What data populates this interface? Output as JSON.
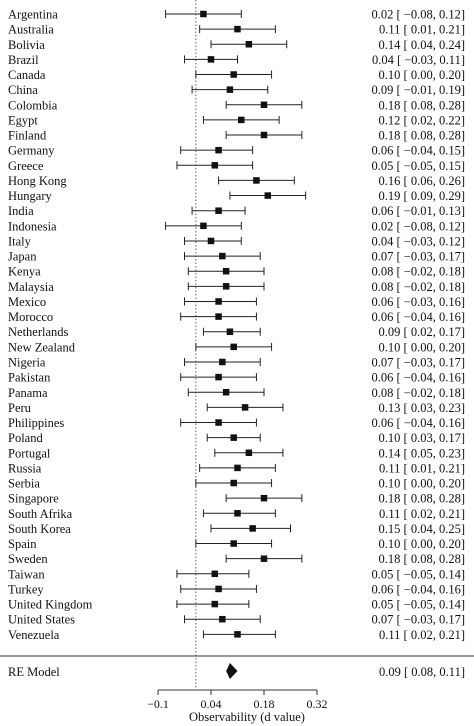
{
  "chart_data": {
    "type": "forest",
    "xlabel": "Observability (d value)",
    "xticks": [
      -0.1,
      0.04,
      0.18,
      0.32
    ],
    "xtick_labels": [
      "−0.1",
      "0.04",
      "0.18",
      "0.32"
    ],
    "xlim": [
      -0.1,
      0.32
    ],
    "reference_line": 0.0,
    "rows": [
      {
        "label": "Argentina",
        "est": 0.02,
        "lo": -0.08,
        "hi": 0.12,
        "text": "0.02 [ −0.08, 0.12]"
      },
      {
        "label": "Australia",
        "est": 0.11,
        "lo": 0.01,
        "hi": 0.21,
        "text": "0.11 [ 0.01, 0.21]"
      },
      {
        "label": "Bolivia",
        "est": 0.14,
        "lo": 0.04,
        "hi": 0.24,
        "text": "0.14 [ 0.04, 0.24]"
      },
      {
        "label": "Brazil",
        "est": 0.04,
        "lo": -0.03,
        "hi": 0.11,
        "text": "0.04 [ −0.03, 0.11]"
      },
      {
        "label": "Canada",
        "est": 0.1,
        "lo": 0.0,
        "hi": 0.2,
        "text": "0.10 [ 0.00, 0.20]"
      },
      {
        "label": "China",
        "est": 0.09,
        "lo": -0.01,
        "hi": 0.19,
        "text": "0.09 [ −0.01, 0.19]"
      },
      {
        "label": "Colombia",
        "est": 0.18,
        "lo": 0.08,
        "hi": 0.28,
        "text": "0.18 [ 0.08, 0.28]"
      },
      {
        "label": "Egypt",
        "est": 0.12,
        "lo": 0.02,
        "hi": 0.22,
        "text": "0.12 [ 0.02, 0.22]"
      },
      {
        "label": "Finland",
        "est": 0.18,
        "lo": 0.08,
        "hi": 0.28,
        "text": "0.18 [ 0.08, 0.28]"
      },
      {
        "label": "Germany",
        "est": 0.06,
        "lo": -0.04,
        "hi": 0.15,
        "text": "0.06 [ −0.04, 0.15]"
      },
      {
        "label": "Greece",
        "est": 0.05,
        "lo": -0.05,
        "hi": 0.15,
        "text": "0.05 [ −0.05, 0.15]"
      },
      {
        "label": "Hong Kong",
        "est": 0.16,
        "lo": 0.06,
        "hi": 0.26,
        "text": "0.16 [ 0.06, 0.26]"
      },
      {
        "label": "Hungary",
        "est": 0.19,
        "lo": 0.09,
        "hi": 0.29,
        "text": "0.19 [ 0.09, 0.29]"
      },
      {
        "label": "India",
        "est": 0.06,
        "lo": -0.01,
        "hi": 0.13,
        "text": "0.06 [ −0.01, 0.13]"
      },
      {
        "label": "Indonesia",
        "est": 0.02,
        "lo": -0.08,
        "hi": 0.12,
        "text": "0.02 [ −0.08, 0.12]"
      },
      {
        "label": "Italy",
        "est": 0.04,
        "lo": -0.03,
        "hi": 0.12,
        "text": "0.04 [ −0.03, 0.12]"
      },
      {
        "label": "Japan",
        "est": 0.07,
        "lo": -0.03,
        "hi": 0.17,
        "text": "0.07 [ −0.03, 0.17]"
      },
      {
        "label": "Kenya",
        "est": 0.08,
        "lo": -0.02,
        "hi": 0.18,
        "text": "0.08 [ −0.02, 0.18]"
      },
      {
        "label": "Malaysia",
        "est": 0.08,
        "lo": -0.02,
        "hi": 0.18,
        "text": "0.08 [ −0.02, 0.18]"
      },
      {
        "label": "Mexico",
        "est": 0.06,
        "lo": -0.03,
        "hi": 0.16,
        "text": "0.06 [ −0.03, 0.16]"
      },
      {
        "label": "Morocco",
        "est": 0.06,
        "lo": -0.04,
        "hi": 0.16,
        "text": "0.06 [ −0.04, 0.16]"
      },
      {
        "label": "Netherlands",
        "est": 0.09,
        "lo": 0.02,
        "hi": 0.17,
        "text": "0.09 [ 0.02, 0.17]"
      },
      {
        "label": "New Zealand",
        "est": 0.1,
        "lo": 0.0,
        "hi": 0.2,
        "text": "0.10 [ 0.00, 0.20]"
      },
      {
        "label": "Nigeria",
        "est": 0.07,
        "lo": -0.03,
        "hi": 0.17,
        "text": "0.07 [ −0.03, 0.17]"
      },
      {
        "label": "Pakistan",
        "est": 0.06,
        "lo": -0.04,
        "hi": 0.16,
        "text": "0.06 [ −0.04, 0.16]"
      },
      {
        "label": "Panama",
        "est": 0.08,
        "lo": -0.02,
        "hi": 0.18,
        "text": "0.08 [ −0.02, 0.18]"
      },
      {
        "label": "Peru",
        "est": 0.13,
        "lo": 0.03,
        "hi": 0.23,
        "text": "0.13 [ 0.03, 0.23]"
      },
      {
        "label": "Philippines",
        "est": 0.06,
        "lo": -0.04,
        "hi": 0.16,
        "text": "0.06 [ −0.04, 0.16]"
      },
      {
        "label": "Poland",
        "est": 0.1,
        "lo": 0.03,
        "hi": 0.17,
        "text": "0.10 [ 0.03, 0.17]"
      },
      {
        "label": "Portugal",
        "est": 0.14,
        "lo": 0.05,
        "hi": 0.23,
        "text": "0.14 [ 0.05, 0.23]"
      },
      {
        "label": "Russia",
        "est": 0.11,
        "lo": 0.01,
        "hi": 0.21,
        "text": "0.11 [ 0.01, 0.21]"
      },
      {
        "label": "Serbia",
        "est": 0.1,
        "lo": 0.0,
        "hi": 0.2,
        "text": "0.10 [ 0.00, 0.20]"
      },
      {
        "label": "Singapore",
        "est": 0.18,
        "lo": 0.08,
        "hi": 0.28,
        "text": "0.18 [ 0.08, 0.28]"
      },
      {
        "label": "South Afrika",
        "est": 0.11,
        "lo": 0.02,
        "hi": 0.21,
        "text": "0.11 [ 0.02, 0.21]"
      },
      {
        "label": "South Korea",
        "est": 0.15,
        "lo": 0.04,
        "hi": 0.25,
        "text": "0.15 [ 0.04, 0.25]"
      },
      {
        "label": "Spain",
        "est": 0.1,
        "lo": 0.0,
        "hi": 0.2,
        "text": "0.10 [ 0.00, 0.20]"
      },
      {
        "label": "Sweden",
        "est": 0.18,
        "lo": 0.08,
        "hi": 0.28,
        "text": "0.18 [ 0.08, 0.28]"
      },
      {
        "label": "Taiwan",
        "est": 0.05,
        "lo": -0.05,
        "hi": 0.14,
        "text": "0.05 [ −0.05, 0.14]"
      },
      {
        "label": "Turkey",
        "est": 0.06,
        "lo": -0.04,
        "hi": 0.16,
        "text": "0.06 [ −0.04, 0.16]"
      },
      {
        "label": "United Kingdom",
        "est": 0.05,
        "lo": -0.05,
        "hi": 0.14,
        "text": "0.05 [ −0.05, 0.14]"
      },
      {
        "label": "United States",
        "est": 0.07,
        "lo": -0.03,
        "hi": 0.17,
        "text": "0.07 [ −0.03, 0.17]"
      },
      {
        "label": "Venezuela",
        "est": 0.11,
        "lo": 0.02,
        "hi": 0.21,
        "text": "0.11 [ 0.02, 0.21]"
      }
    ],
    "summary": {
      "label": "RE Model",
      "est": 0.09,
      "lo": 0.08,
      "hi": 0.11,
      "text": "0.09 [ 0.08, 0.11]"
    }
  }
}
